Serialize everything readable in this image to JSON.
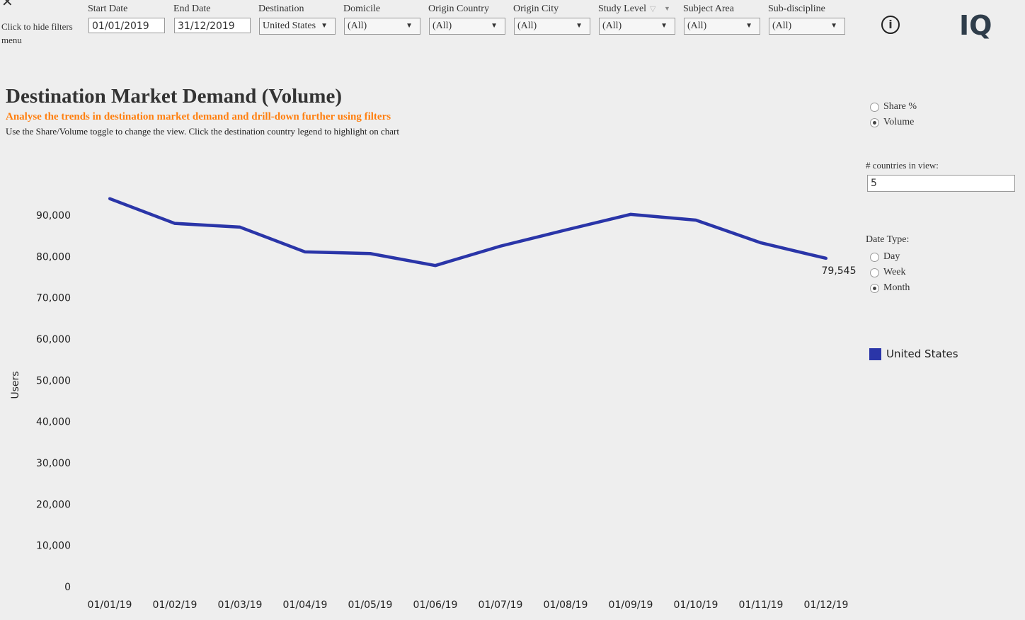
{
  "filters": {
    "hide_label": "Click to hide filters menu",
    "start_date": {
      "label": "Start Date",
      "value": "01/01/2019"
    },
    "end_date": {
      "label": "End Date",
      "value": "31/12/2019"
    },
    "selects": [
      {
        "label": "Destination",
        "value": "United States"
      },
      {
        "label": "Domicile",
        "value": "(All)"
      },
      {
        "label": "Origin Country",
        "value": "(All)"
      },
      {
        "label": "Origin City",
        "value": "(All)"
      },
      {
        "label": "Study Level",
        "value": "(All)"
      },
      {
        "label": "Subject Area",
        "value": "(All)"
      },
      {
        "label": "Sub-discipline",
        "value": "(All)"
      }
    ],
    "logo": "IQ"
  },
  "header": {
    "title": "Destination Market Demand (Volume)",
    "subtitle": "Analyse the trends in destination market demand and drill-down further using filters",
    "description": "Use the Share/Volume toggle to change the view. Click the destination country legend to highlight on chart"
  },
  "side": {
    "view_options": [
      {
        "label": "Share %",
        "selected": false
      },
      {
        "label": "Volume",
        "selected": true
      }
    ],
    "countries_label": "# countries in view:",
    "countries_value": "5",
    "date_type_label": "Date Type:",
    "date_types": [
      {
        "label": "Day",
        "selected": false
      },
      {
        "label": "Week",
        "selected": false
      },
      {
        "label": "Month",
        "selected": true
      }
    ],
    "legend": [
      {
        "label": "United States",
        "color": "#2a35a8"
      }
    ]
  },
  "chart_data": {
    "type": "line",
    "ylabel": "Users",
    "ylim": [
      0,
      90000
    ],
    "yticks": [
      "0",
      "10,000",
      "20,000",
      "30,000",
      "40,000",
      "50,000",
      "60,000",
      "70,000",
      "80,000",
      "90,000"
    ],
    "categories": [
      "01/01/19",
      "01/02/19",
      "01/03/19",
      "01/04/19",
      "01/05/19",
      "01/06/19",
      "01/07/19",
      "01/08/19",
      "01/09/19",
      "01/10/19",
      "01/11/19",
      "01/12/19"
    ],
    "series": [
      {
        "name": "United States",
        "color": "#2a35a8",
        "values": [
          94000,
          88000,
          87100,
          81100,
          80700,
          77800,
          82500,
          86400,
          90200,
          88800,
          83300,
          79545
        ]
      }
    ],
    "end_label": "79,545"
  }
}
